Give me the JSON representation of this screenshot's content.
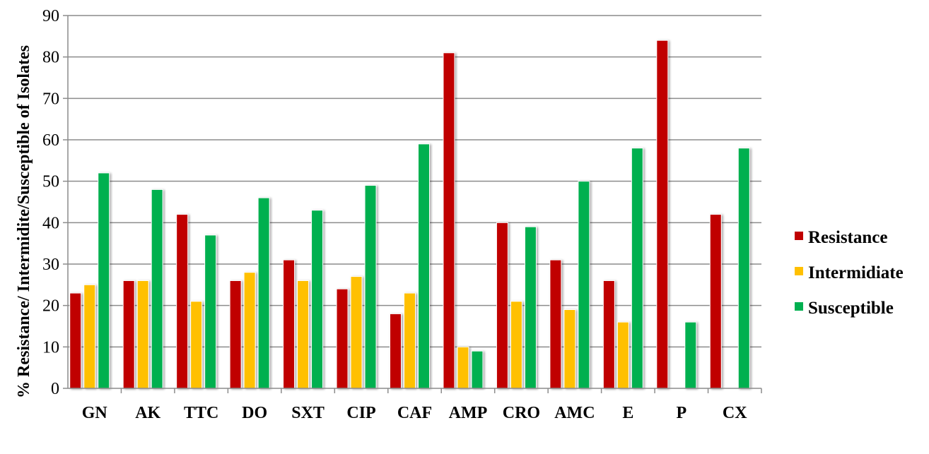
{
  "chart_data": {
    "type": "bar",
    "title": "",
    "xlabel": "",
    "ylabel": "% Resistance/ Intermidite/Susceptible of Isolates",
    "ylim": [
      0,
      90
    ],
    "yticks": [
      0,
      10,
      20,
      30,
      40,
      50,
      60,
      70,
      80,
      90
    ],
    "grid": "horizontal",
    "legend_position": "right",
    "categories": [
      "GN",
      "AK",
      "TTC",
      "DO",
      "SXT",
      "CIP",
      "CAF",
      "AMP",
      "CRO",
      "AMC",
      "E",
      "P",
      "CX"
    ],
    "series": [
      {
        "name": "Resistance",
        "color": "#c00000",
        "values": [
          23,
          26,
          42,
          26,
          31,
          24,
          18,
          81,
          40,
          31,
          26,
          84,
          42
        ]
      },
      {
        "name": "Intermidiate",
        "color": "#ffc000",
        "values": [
          25,
          26,
          21,
          28,
          26,
          27,
          23,
          10,
          21,
          19,
          16,
          0,
          0
        ]
      },
      {
        "name": "Susceptible",
        "color": "#00b050",
        "values": [
          52,
          48,
          37,
          46,
          43,
          49,
          59,
          9,
          39,
          50,
          58,
          16,
          58
        ]
      }
    ]
  }
}
